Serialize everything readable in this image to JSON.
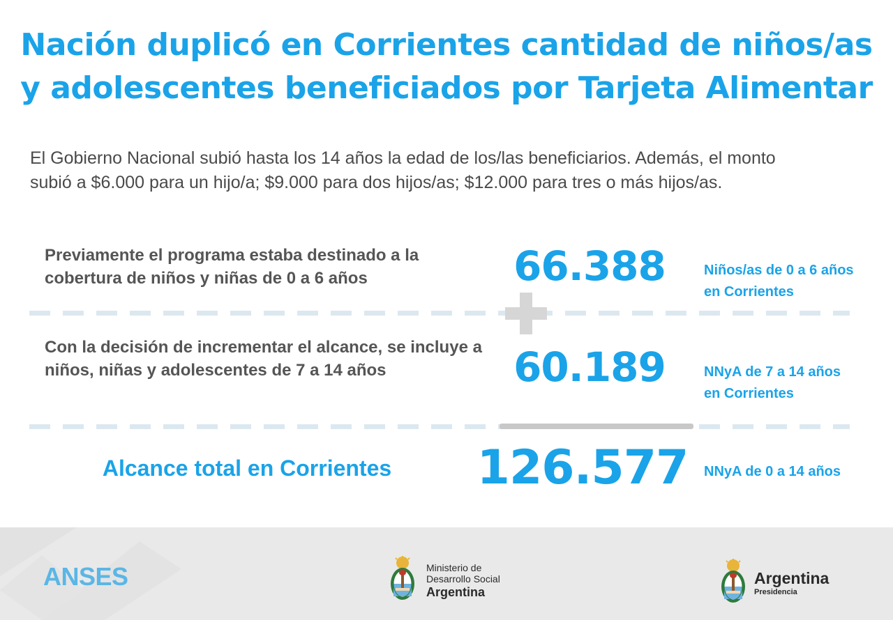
{
  "header": {
    "title_line1": "Nación duplicó en Corrientes cantidad de niños/as",
    "title_line2": "y adolescentes beneficiados por Tarjeta Alimentar",
    "subtitle_line1": "El Gobierno Nacional subió hasta los 14 años la edad de los/las beneficiarios. Además, el monto",
    "subtitle_line2": "subió a $6.000 para un hijo/a; $9.000 para dos hijos/as; $12.000 para tres o más hijos/as."
  },
  "rows": [
    {
      "description": "Previamente el programa estaba destinado a la cobertura de niños y niñas de 0 a 6 años",
      "value": "66.388",
      "label_line1": "Niños/as de 0 a 6 años",
      "label_line2": "en Corrientes"
    },
    {
      "description": "Con la decisión de incrementar el alcance, se incluye a niños, niñas y adolescentes de 7 a 14 años",
      "value": "60.189",
      "label_line1": "NNyA de 7 a 14 años",
      "label_line2": "en Corrientes"
    }
  ],
  "total": {
    "label": "Alcance total en Corrientes",
    "value": "126.577",
    "unit_label": "NNyA de 0 a 14 años"
  },
  "footer": {
    "anses_logo": "ANSES",
    "ministry_line1": "Ministerio de",
    "ministry_line2": "Desarrollo Social",
    "ministry_line3": "Argentina",
    "presidencia_line1": "Argentina",
    "presidencia_line2": "Presidencia",
    "emblem_icon": "argentina-coat-of-arms-icon"
  },
  "colors": {
    "accent": "#1aa3e8",
    "body_text": "#555555",
    "footer_bg": "#e9e9e9"
  }
}
